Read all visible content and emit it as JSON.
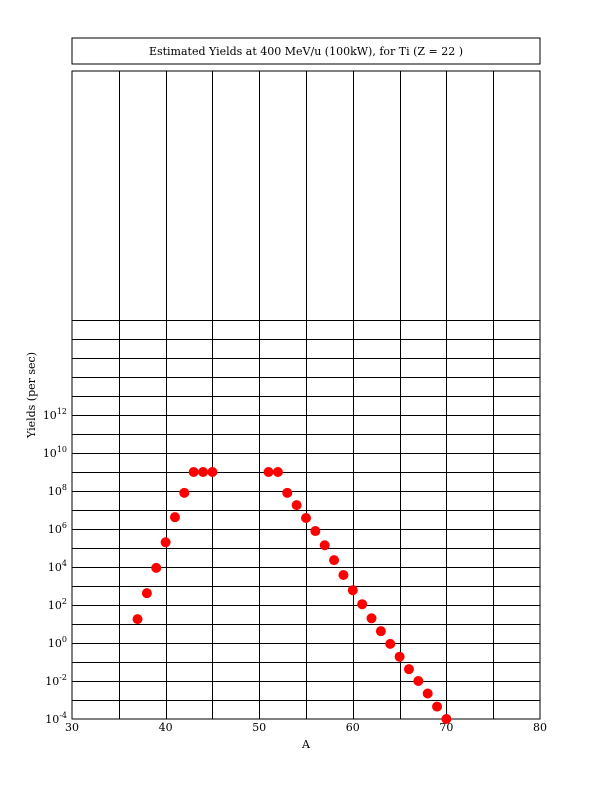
{
  "chart_data": {
    "type": "scatter",
    "title": "Estimated Yields at 400 MeV/u (100kW), for Ti (Z = 22 )",
    "xlabel": "A",
    "ylabel": "Yields (per sec)",
    "xlim": [
      30,
      80
    ],
    "ylim_log10": [
      -4,
      14
    ],
    "y_scale": "log",
    "grid": true,
    "marker_color": "#ff0000",
    "x_ticks": [
      {
        "value": 30,
        "label": "30"
      },
      {
        "value": 40,
        "label": "40"
      },
      {
        "value": 50,
        "label": "50"
      },
      {
        "value": 60,
        "label": "60"
      },
      {
        "value": 70,
        "label": "70"
      },
      {
        "value": 80,
        "label": "80"
      }
    ],
    "y_ticks": [
      {
        "exp": 12,
        "base": "10",
        "sup": "12"
      },
      {
        "exp": 10,
        "base": "10",
        "sup": "10"
      },
      {
        "exp": 8,
        "base": "10",
        "sup": "8"
      },
      {
        "exp": 6,
        "base": "10",
        "sup": "6"
      },
      {
        "exp": 4,
        "base": "10",
        "sup": "4"
      },
      {
        "exp": 2,
        "base": "10",
        "sup": "2"
      },
      {
        "exp": 0,
        "base": "10",
        "sup": "0"
      },
      {
        "exp": -2,
        "base": "10",
        "sup": "-2"
      },
      {
        "exp": -4,
        "base": "10",
        "sup": "-4"
      }
    ],
    "points": [
      {
        "A": 37,
        "yield": 18.0
      },
      {
        "A": 38,
        "yield": 420.0
      },
      {
        "A": 39,
        "yield": 9000.0
      },
      {
        "A": 40,
        "yield": 200000.0
      },
      {
        "A": 41,
        "yield": 4200000.0
      },
      {
        "A": 42,
        "yield": 80000000.0
      },
      {
        "A": 43,
        "yield": 1000000000.0
      },
      {
        "A": 44,
        "yield": 1000000000.0
      },
      {
        "A": 45,
        "yield": 1000000000.0
      },
      {
        "A": 51,
        "yield": 1000000000.0
      },
      {
        "A": 52,
        "yield": 1000000000.0
      },
      {
        "A": 53,
        "yield": 80000000.0
      },
      {
        "A": 54,
        "yield": 18000000.0
      },
      {
        "A": 55,
        "yield": 3800000.0
      },
      {
        "A": 56,
        "yield": 780000.0
      },
      {
        "A": 57,
        "yield": 140000.0
      },
      {
        "A": 58,
        "yield": 23000.0
      },
      {
        "A": 59,
        "yield": 3800.0
      },
      {
        "A": 60,
        "yield": 600.0
      },
      {
        "A": 61,
        "yield": 110.0
      },
      {
        "A": 62,
        "yield": 20.0
      },
      {
        "A": 63,
        "yield": 4.2
      },
      {
        "A": 64,
        "yield": 0.9
      },
      {
        "A": 65,
        "yield": 0.19
      },
      {
        "A": 66,
        "yield": 0.042
      },
      {
        "A": 67,
        "yield": 0.01
      },
      {
        "A": 68,
        "yield": 0.0022
      },
      {
        "A": 69,
        "yield": 0.00045
      },
      {
        "A": 70,
        "yield": 0.0001
      }
    ]
  }
}
